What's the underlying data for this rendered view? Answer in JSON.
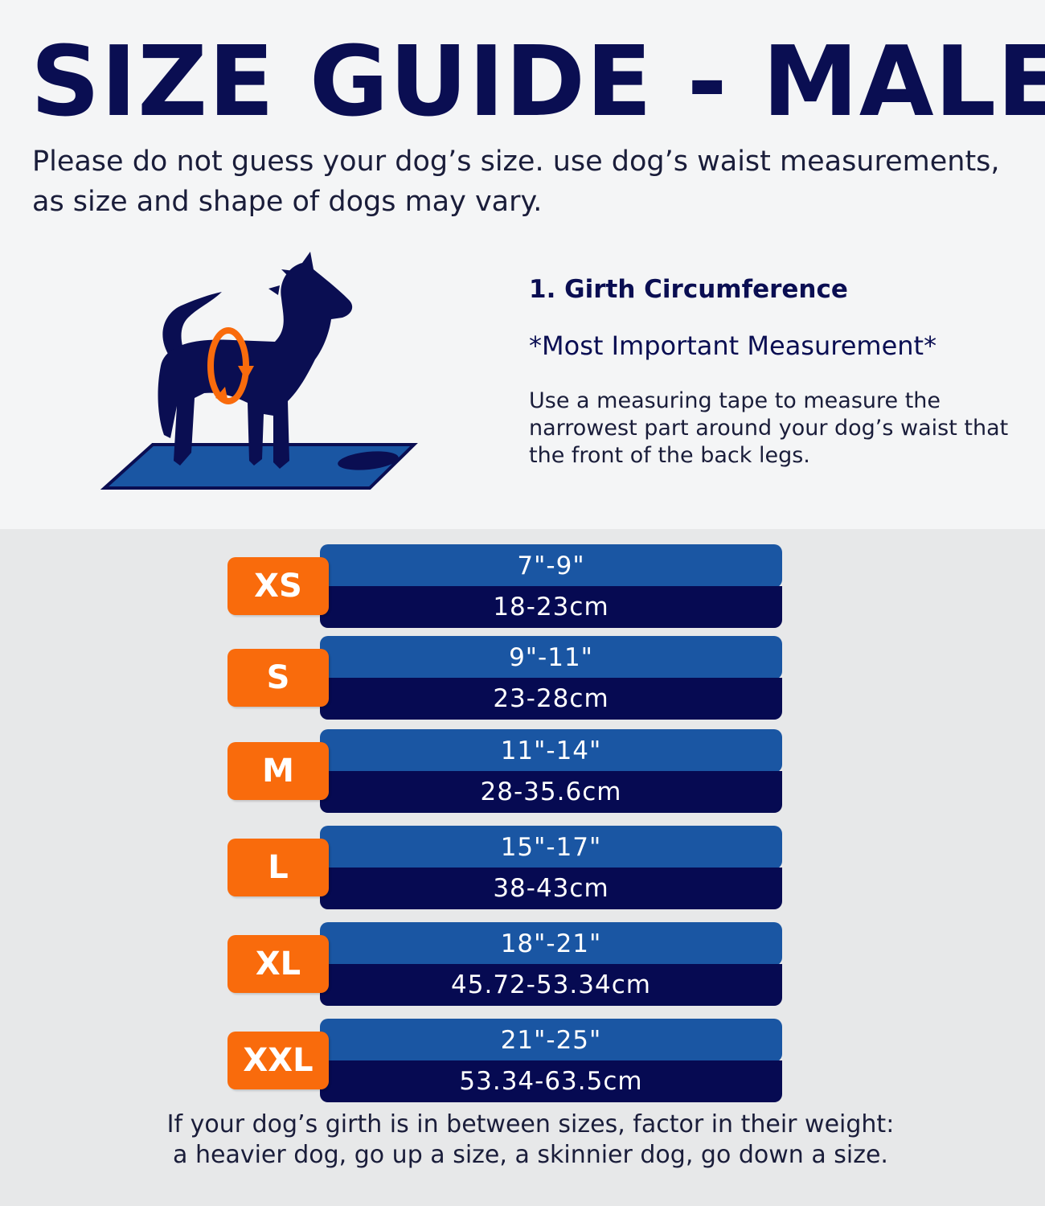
{
  "title": "SIZE GUIDE - MALE",
  "subtitle": "Please do not guess your dog’s size. use dog’s waist measurements, as size and shape of dogs may vary.",
  "measurement": {
    "heading": "1. Girth Circumference",
    "important": "*Most Important Measurement*",
    "description": "Use a measuring tape to measure the narrowest part around your dog’s waist that the front of the back legs."
  },
  "sizes": [
    {
      "label": "XS",
      "inches": "7\"-9\"",
      "cm": "18-23cm"
    },
    {
      "label": "S",
      "inches": "9\"-11\"",
      "cm": "23-28cm"
    },
    {
      "label": "M",
      "inches": "11\"-14\"",
      "cm": "28-35.6cm"
    },
    {
      "label": "L",
      "inches": "15\"-17\"",
      "cm": "38-43cm"
    },
    {
      "label": "XL",
      "inches": "18\"-21\"",
      "cm": "45.72-53.34cm"
    },
    {
      "label": "XXL",
      "inches": "21\"-25\"",
      "cm": "53.34-63.5cm"
    }
  ],
  "footnote": {
    "line1": "If your dog’s girth is in between sizes, factor in their weight:",
    "line2": "a heavier dog, go up a size, a skinnier dog, go down a size."
  },
  "colors": {
    "navy": "#0a0e52",
    "blue": "#1a56a3",
    "orange": "#f96b0c"
  },
  "icons": {
    "illustration": "dog-measuring-icon"
  }
}
